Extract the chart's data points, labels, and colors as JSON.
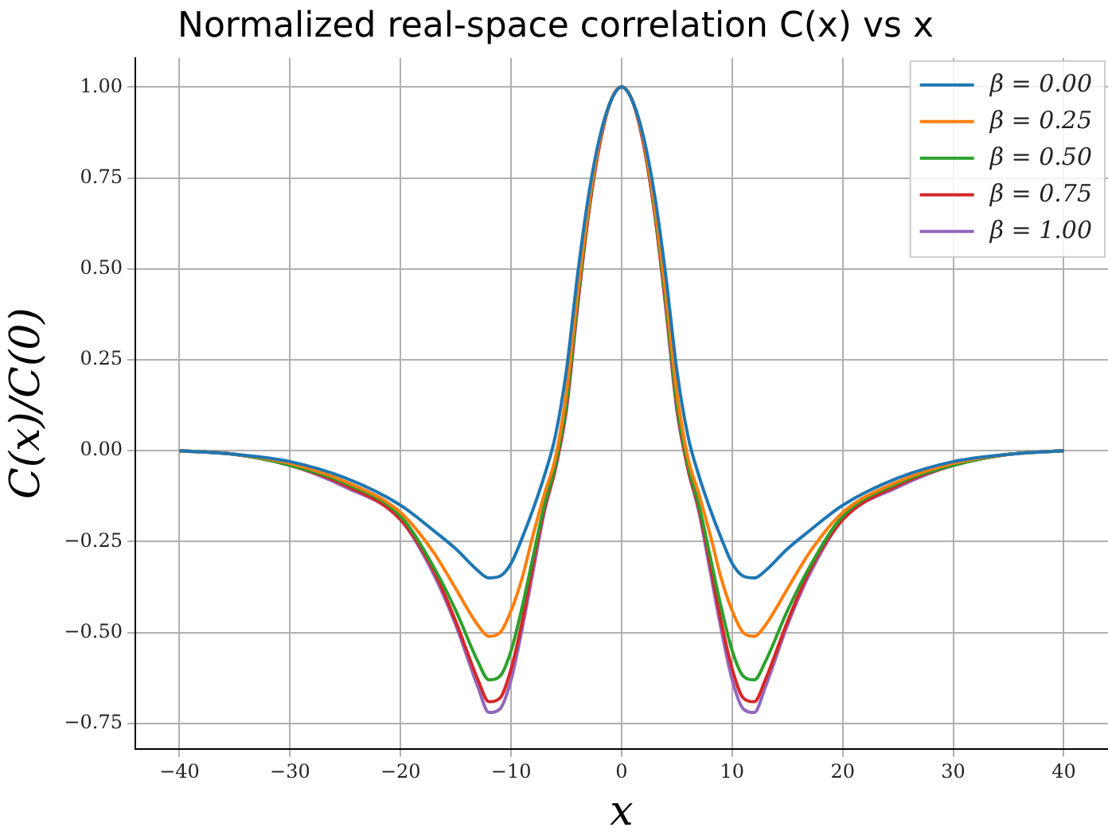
{
  "chart_data": {
    "type": "line",
    "title": "Normalized real-space correlation C(x) vs x",
    "xlabel": "x",
    "ylabel": "C(x)/C(0)",
    "x": [
      -40,
      -35,
      -30,
      -25,
      -20,
      -17,
      -15,
      -13,
      -12,
      -11,
      -10,
      -9,
      -8,
      -7,
      -6,
      -5,
      -4,
      -3,
      -2,
      -1,
      0,
      1,
      2,
      3,
      4,
      5,
      6,
      7,
      8,
      9,
      10,
      11,
      12,
      13,
      15,
      17,
      20,
      25,
      30,
      35,
      40
    ],
    "series": [
      {
        "name": "β = 0.00",
        "color": "#1f77b4",
        "values": [
          0,
          -0.01,
          -0.03,
          -0.075,
          -0.15,
          -0.22,
          -0.27,
          -0.33,
          -0.35,
          -0.345,
          -0.31,
          -0.24,
          -0.16,
          -0.07,
          0.04,
          0.22,
          0.48,
          0.7,
          0.86,
          0.96,
          1,
          0.96,
          0.86,
          0.7,
          0.48,
          0.22,
          0.04,
          -0.07,
          -0.16,
          -0.24,
          -0.31,
          -0.345,
          -0.35,
          -0.33,
          -0.27,
          -0.22,
          -0.15,
          -0.075,
          -0.03,
          -0.01,
          0
        ]
      },
      {
        "name": "β = 0.25",
        "color": "#ff7f0e",
        "values": [
          0,
          -0.01,
          -0.035,
          -0.085,
          -0.17,
          -0.28,
          -0.38,
          -0.48,
          -0.51,
          -0.5,
          -0.44,
          -0.35,
          -0.23,
          -0.12,
          -0.02,
          0.16,
          0.43,
          0.67,
          0.85,
          0.96,
          1,
          0.96,
          0.85,
          0.67,
          0.43,
          0.16,
          -0.02,
          -0.12,
          -0.23,
          -0.35,
          -0.44,
          -0.5,
          -0.51,
          -0.48,
          -0.38,
          -0.28,
          -0.17,
          -0.085,
          -0.035,
          -0.01,
          0
        ]
      },
      {
        "name": "β = 0.50",
        "color": "#2ca02c",
        "values": [
          0,
          -0.01,
          -0.04,
          -0.09,
          -0.18,
          -0.32,
          -0.44,
          -0.58,
          -0.63,
          -0.62,
          -0.55,
          -0.43,
          -0.29,
          -0.15,
          -0.04,
          0.13,
          0.41,
          0.66,
          0.85,
          0.96,
          1,
          0.96,
          0.85,
          0.66,
          0.41,
          0.13,
          -0.04,
          -0.15,
          -0.29,
          -0.43,
          -0.55,
          -0.62,
          -0.63,
          -0.58,
          -0.44,
          -0.32,
          -0.18,
          -0.09,
          -0.04,
          -0.01,
          0
        ]
      },
      {
        "name": "β = 0.75",
        "color": "#d62728",
        "values": [
          0,
          -0.01,
          -0.04,
          -0.095,
          -0.19,
          -0.33,
          -0.47,
          -0.63,
          -0.69,
          -0.68,
          -0.6,
          -0.47,
          -0.31,
          -0.16,
          -0.05,
          0.12,
          0.4,
          0.65,
          0.84,
          0.96,
          1,
          0.96,
          0.84,
          0.65,
          0.4,
          0.12,
          -0.05,
          -0.16,
          -0.31,
          -0.47,
          -0.6,
          -0.68,
          -0.69,
          -0.63,
          -0.47,
          -0.33,
          -0.19,
          -0.095,
          -0.04,
          -0.01,
          0
        ]
      },
      {
        "name": "β = 1.00",
        "color": "#9467bd",
        "values": [
          0,
          -0.01,
          -0.04,
          -0.1,
          -0.19,
          -0.34,
          -0.48,
          -0.65,
          -0.72,
          -0.71,
          -0.63,
          -0.49,
          -0.33,
          -0.17,
          -0.05,
          0.11,
          0.39,
          0.65,
          0.84,
          0.96,
          1,
          0.96,
          0.84,
          0.65,
          0.39,
          0.11,
          -0.05,
          -0.17,
          -0.33,
          -0.49,
          -0.63,
          -0.71,
          -0.72,
          -0.65,
          -0.48,
          -0.34,
          -0.19,
          -0.1,
          -0.04,
          -0.01,
          0
        ]
      }
    ],
    "xlim": [
      -44,
      44
    ],
    "ylim": [
      -0.82,
      1.08
    ],
    "xticks": [
      {
        "value": -40,
        "label": "−40"
      },
      {
        "value": -30,
        "label": "−30"
      },
      {
        "value": -20,
        "label": "−20"
      },
      {
        "value": -10,
        "label": "−10"
      },
      0,
      10,
      20,
      30,
      40
    ],
    "yticks": [
      {
        "value": -0.75,
        "label": "−0.75"
      },
      {
        "value": -0.5,
        "label": "−0.50"
      },
      {
        "value": -0.25,
        "label": "−0.25"
      },
      {
        "value": 0,
        "label": "0.00"
      },
      {
        "value": 0.25,
        "label": "0.25"
      },
      {
        "value": 0.5,
        "label": "0.50"
      },
      {
        "value": 0.75,
        "label": "0.75"
      },
      {
        "value": 1,
        "label": "1.00"
      }
    ],
    "grid": true,
    "legend": "top right",
    "line_style": "solid",
    "marker": "none"
  }
}
